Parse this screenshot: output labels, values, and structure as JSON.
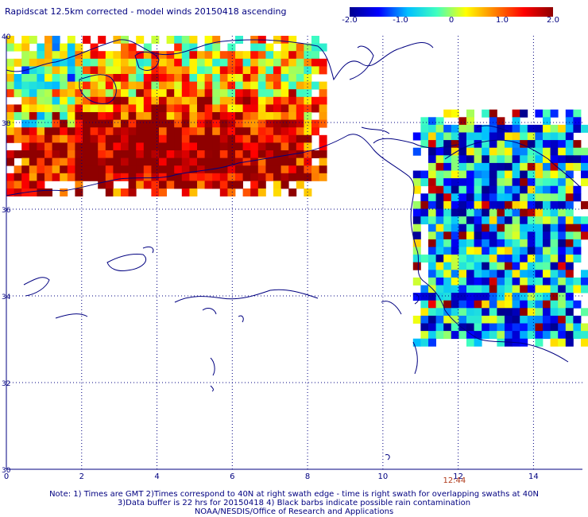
{
  "title": "Rapidscat 12.5km corrected - model winds 20150418 ascending",
  "colorbar": {
    "ticks": [
      "-2.0",
      "-1.0",
      "0",
      "1.0",
      "2.0"
    ],
    "tick_values": [
      -2,
      -1,
      0,
      1,
      2
    ],
    "range": [
      -2,
      2
    ],
    "colors": [
      "#00008f",
      "#0000ff",
      "#00bfff",
      "#40ffbf",
      "#ffff00",
      "#ff8000",
      "#ff0000",
      "#8f0000"
    ]
  },
  "chart_data": {
    "type": "heatmap",
    "x_ticks": [
      "0",
      "2",
      "4",
      "6",
      "8",
      "10",
      "12",
      "14"
    ],
    "x_tick_values": [
      0,
      2,
      4,
      6,
      8,
      10,
      12,
      14
    ],
    "y_ticks": [
      "40",
      "38",
      "36",
      "34",
      "32",
      "30"
    ],
    "y_tick_values": [
      40,
      38,
      36,
      34,
      32,
      30
    ],
    "xlim": [
      0,
      15.3
    ],
    "ylim": [
      30,
      40
    ],
    "grid": true,
    "value_range": [
      -2,
      2
    ],
    "regions": [
      {
        "lon": [
          0,
          8.4
        ],
        "lat": [
          36.4,
          40
        ],
        "mean_difference": 1.6
      },
      {
        "lon": [
          10.8,
          15.3
        ],
        "lat": [
          32.9,
          38.3
        ],
        "mean_difference": -0.8
      }
    ]
  },
  "time_label": "12:44",
  "time_lon": 11.9,
  "notes": [
    "Note: 1) Times are GMT 2)Times correspond to 40N at right swath edge - time is right swath for overlapping swaths at 40N",
    "3)Data buffer is 22 hrs for 20150418 4) Black barbs indicate possible rain contamination",
    "NOAA/NESDIS/Office of Research and Applications"
  ]
}
